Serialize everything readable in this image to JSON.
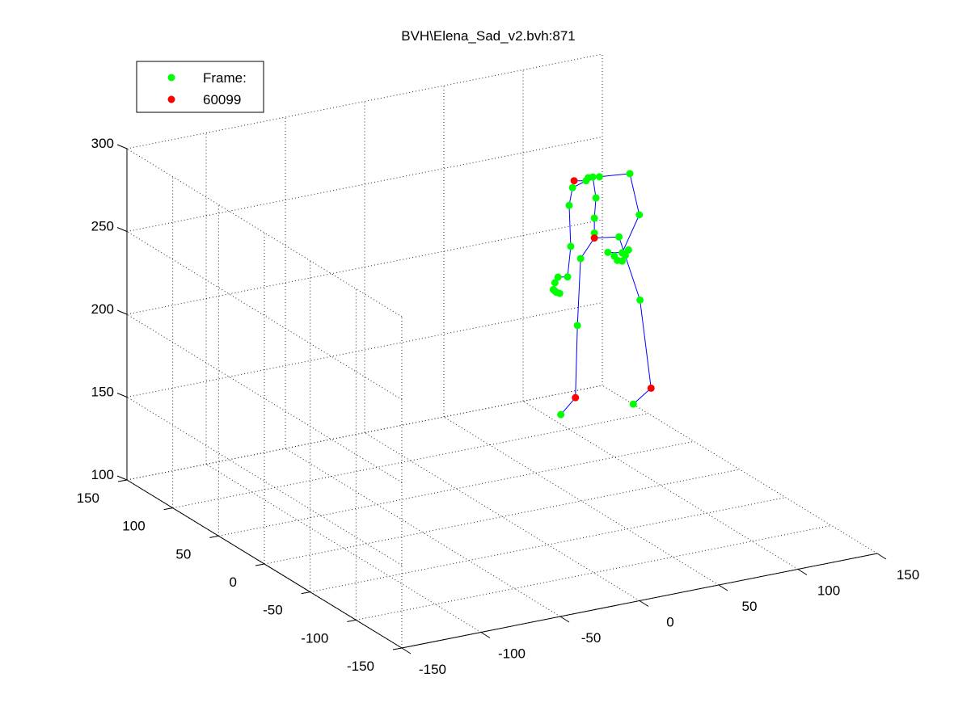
{
  "chart_data": {
    "type": "scatter",
    "title": "BVH\\Elena_Sad_v2.bvh:871",
    "xlim": [
      -150,
      150
    ],
    "ylim": [
      -150,
      150
    ],
    "zlim": [
      100,
      300
    ],
    "x_ticks": [
      -150,
      -100,
      -50,
      0,
      50,
      100,
      150
    ],
    "y_ticks": [
      -150,
      -100,
      -50,
      0,
      50,
      100,
      150
    ],
    "z_ticks": [
      100,
      150,
      200,
      250,
      300
    ],
    "grid": true,
    "legend": {
      "placement": "top-left",
      "entries": [
        {
          "label": "Frame:",
          "color": "#00ff00"
        },
        {
          "label": "60099",
          "color": "#ff0000"
        }
      ]
    },
    "colors": {
      "joint": "#00ff00",
      "highlight": "#ff0000",
      "bone": "#0000ff",
      "grid": "#262626"
    },
    "joints": [
      {
        "id": "head_top",
        "x": 105,
        "y": 103,
        "z": 248,
        "highlight": true
      },
      {
        "id": "head",
        "x": 112,
        "y": 102,
        "z": 247,
        "highlight": false
      },
      {
        "id": "neck",
        "x": 118,
        "y": 110,
        "z": 245,
        "highlight": false
      },
      {
        "id": "neck2",
        "x": 122,
        "y": 112,
        "z": 244,
        "highlight": false
      },
      {
        "id": "r_collar",
        "x": 104,
        "y": 103,
        "z": 244,
        "highlight": false
      },
      {
        "id": "l_collar",
        "x": 128,
        "y": 115,
        "z": 242,
        "highlight": false
      },
      {
        "id": "r_shoulder",
        "x": 99,
        "y": 98,
        "z": 236,
        "highlight": false
      },
      {
        "id": "l_shoulder",
        "x": 150,
        "y": 120,
        "z": 238,
        "highlight": false
      },
      {
        "id": "spine3",
        "x": 124,
        "y": 112,
        "z": 231,
        "highlight": false
      },
      {
        "id": "spine2",
        "x": 123,
        "y": 112,
        "z": 219,
        "highlight": false
      },
      {
        "id": "spine1",
        "x": 123,
        "y": 112,
        "z": 210,
        "highlight": false
      },
      {
        "id": "hips",
        "x": 123,
        "y": 112,
        "z": 207,
        "highlight": true
      },
      {
        "id": "r_elbow",
        "x": 100,
        "y": 98,
        "z": 211,
        "highlight": false
      },
      {
        "id": "l_elbow",
        "x": 156,
        "y": 120,
        "z": 212,
        "highlight": false
      },
      {
        "id": "r_hip",
        "x": 112,
        "y": 108,
        "z": 198,
        "highlight": false
      },
      {
        "id": "l_hip",
        "x": 142,
        "y": 118,
        "z": 202,
        "highlight": false
      },
      {
        "id": "r_wrist",
        "x": 98,
        "y": 98,
        "z": 193,
        "highlight": false
      },
      {
        "id": "l_wrist",
        "x": 144,
        "y": 118,
        "z": 192,
        "highlight": false
      },
      {
        "id": "r_hand_1",
        "x": 92,
        "y": 98,
        "z": 194,
        "highlight": false
      },
      {
        "id": "r_hand_2",
        "x": 90,
        "y": 98,
        "z": 191,
        "highlight": false
      },
      {
        "id": "r_hand_3",
        "x": 89,
        "y": 98,
        "z": 187,
        "highlight": false
      },
      {
        "id": "r_hand_4",
        "x": 90,
        "y": 98,
        "z": 186,
        "highlight": false
      },
      {
        "id": "r_hand_5",
        "x": 91,
        "y": 98,
        "z": 185,
        "highlight": false
      },
      {
        "id": "r_hand_6",
        "x": 93,
        "y": 98,
        "z": 184,
        "highlight": false
      },
      {
        "id": "l_hand_1",
        "x": 135,
        "y": 118,
        "z": 194,
        "highlight": false
      },
      {
        "id": "l_hand_2",
        "x": 139,
        "y": 118,
        "z": 191,
        "highlight": false
      },
      {
        "id": "l_hand_3",
        "x": 141,
        "y": 118,
        "z": 188,
        "highlight": false
      },
      {
        "id": "l_hand_4",
        "x": 144,
        "y": 118,
        "z": 187,
        "highlight": false
      },
      {
        "id": "l_hand_5",
        "x": 146,
        "y": 118,
        "z": 190,
        "highlight": false
      },
      {
        "id": "l_hand_6",
        "x": 148,
        "y": 118,
        "z": 193,
        "highlight": false
      },
      {
        "id": "r_knee",
        "x": 110,
        "y": 108,
        "z": 158,
        "highlight": false
      },
      {
        "id": "l_knee",
        "x": 157,
        "y": 121,
        "z": 160,
        "highlight": false
      },
      {
        "id": "r_ankle",
        "x": 107,
        "y": 105,
        "z": 116,
        "highlight": true
      },
      {
        "id": "l_ankle",
        "x": 153,
        "y": 102,
        "z": 114,
        "highlight": true
      },
      {
        "id": "r_toe",
        "x": 92,
        "y": 95,
        "z": 112,
        "highlight": false
      },
      {
        "id": "l_toe",
        "x": 136,
        "y": 92,
        "z": 111,
        "highlight": false
      }
    ],
    "bones": [
      [
        "head_top",
        "head"
      ],
      [
        "head",
        "neck"
      ],
      [
        "neck",
        "neck2"
      ],
      [
        "head",
        "r_collar"
      ],
      [
        "neck",
        "l_collar"
      ],
      [
        "r_collar",
        "r_shoulder"
      ],
      [
        "l_collar",
        "l_shoulder"
      ],
      [
        "neck2",
        "spine3"
      ],
      [
        "spine3",
        "spine2"
      ],
      [
        "spine2",
        "spine1"
      ],
      [
        "spine1",
        "hips"
      ],
      [
        "r_shoulder",
        "r_elbow"
      ],
      [
        "r_elbow",
        "r_wrist"
      ],
      [
        "r_wrist",
        "r_hand_1"
      ],
      [
        "l_shoulder",
        "l_elbow"
      ],
      [
        "l_elbow",
        "l_wrist"
      ],
      [
        "l_wrist",
        "l_hand_1"
      ],
      [
        "hips",
        "r_hip"
      ],
      [
        "hips",
        "l_hip"
      ],
      [
        "r_hip",
        "r_knee"
      ],
      [
        "r_knee",
        "r_ankle"
      ],
      [
        "r_ankle",
        "r_toe"
      ],
      [
        "l_hip",
        "l_knee"
      ],
      [
        "l_knee",
        "l_ankle"
      ],
      [
        "l_ankle",
        "l_toe"
      ]
    ]
  }
}
